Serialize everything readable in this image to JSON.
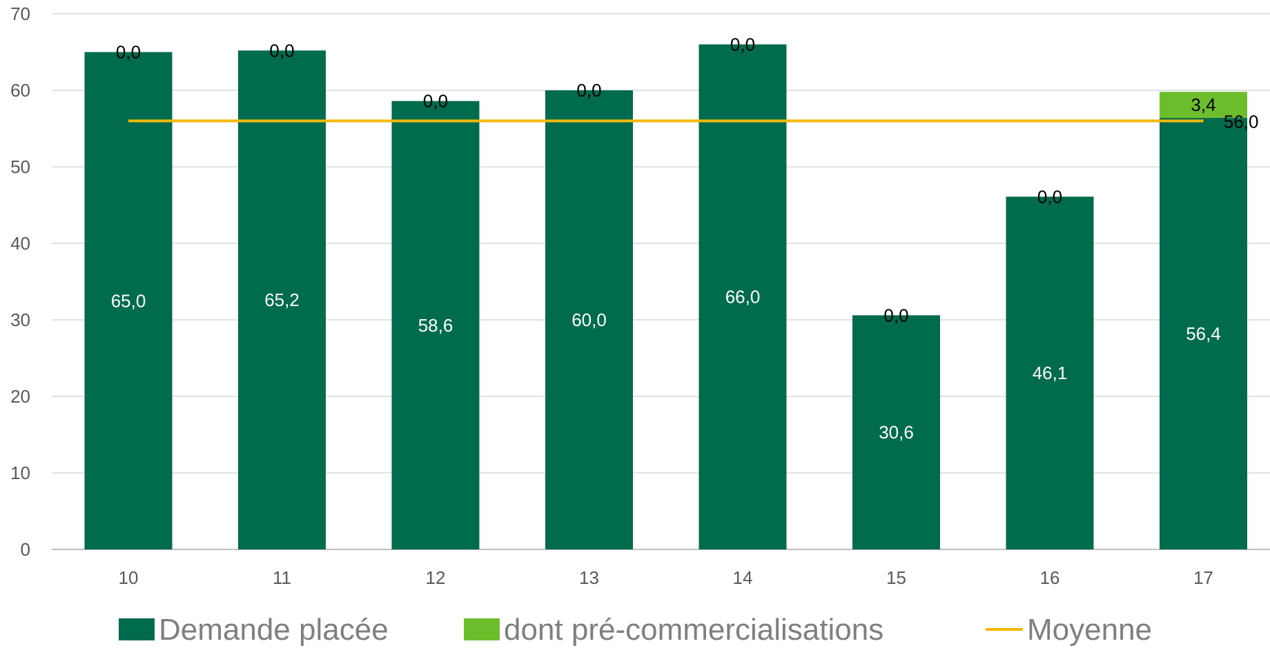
{
  "chart_data": {
    "type": "bar",
    "stacked": true,
    "categories": [
      "10",
      "11",
      "12",
      "13",
      "14",
      "15",
      "16",
      "17"
    ],
    "series": [
      {
        "name": "Demande placée",
        "type": "bar",
        "values": [
          65.0,
          65.2,
          58.6,
          60.0,
          66.0,
          30.6,
          46.1,
          56.4
        ],
        "labels": [
          "65,0",
          "65,2",
          "58,6",
          "60,0",
          "66,0",
          "30,6",
          "46,1",
          "56,4"
        ],
        "color": "#006B4D"
      },
      {
        "name": "dont pré-commercialisations",
        "type": "bar",
        "values": [
          0.0,
          0.0,
          0.0,
          0.0,
          0.0,
          0.0,
          0.0,
          3.4
        ],
        "labels": [
          "0,0",
          "0,0",
          "0,0",
          "0,0",
          "0,0",
          "0,0",
          "0,0",
          "3,4"
        ],
        "color": "#6DBE2C"
      },
      {
        "name": "Moyenne",
        "type": "line",
        "values": [
          56.0,
          56.0,
          56.0,
          56.0,
          56.0,
          56.0,
          56.0,
          56.0
        ],
        "end_label": "56,0",
        "color": "#F4B800"
      }
    ],
    "ylim": [
      0,
      70
    ],
    "yticks": [
      "0",
      "10",
      "20",
      "30",
      "40",
      "50",
      "60",
      "70"
    ],
    "grid": true,
    "legend_position": "bottom",
    "title": "",
    "xlabel": "",
    "ylabel": ""
  }
}
